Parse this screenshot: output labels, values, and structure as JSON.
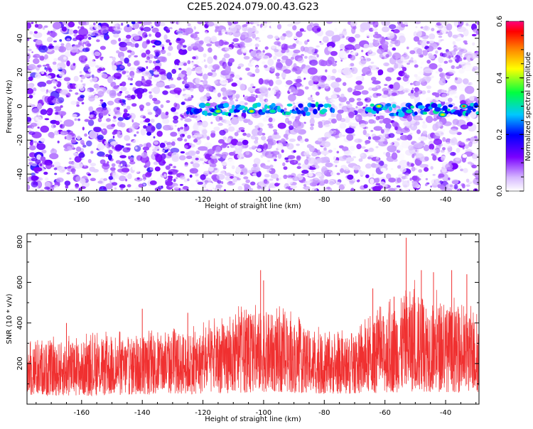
{
  "title": "C2E5.2024.079.00.43.G23",
  "chart_data": [
    {
      "type": "heatmap",
      "xlabel": "Height of straight line (km)",
      "ylabel": "Frequency (Hz)",
      "xlim": [
        -178,
        -29
      ],
      "ylim": [
        -50,
        50
      ],
      "xticks": [
        -160,
        -140,
        -120,
        -100,
        -80,
        -60,
        -40
      ],
      "xtick_labels": [
        "-160",
        "-140",
        "-120",
        "-100",
        "-80",
        "-60",
        "-40"
      ],
      "yticks": [
        -40,
        -20,
        0,
        20,
        40
      ],
      "ytick_labels": [
        "-40",
        "-20",
        "0",
        "20",
        "40"
      ],
      "colorbar": {
        "label": "Normalized spectral amplitude",
        "range": [
          0,
          0.6
        ],
        "ticks": [
          0,
          0.2,
          0.4,
          0.6
        ],
        "tick_labels": [
          "0.0",
          "0.2",
          "0.4",
          "0.6"
        ]
      },
      "band": {
        "center_hz": -2,
        "segments": [
          {
            "x_start": -125,
            "x_end": -77
          },
          {
            "x_start": -66,
            "x_end": -29
          }
        ],
        "peaks": [
          {
            "x": -115,
            "y": -3,
            "amp": 0.4
          },
          {
            "x": -104,
            "y": -3,
            "amp": 0.45
          },
          {
            "x": -97,
            "y": -3,
            "amp": 0.32
          },
          {
            "x": -62,
            "y": 0,
            "amp": 0.45
          },
          {
            "x": -52,
            "y": -3,
            "amp": 0.32
          },
          {
            "x": -41,
            "y": -5,
            "amp": 0.45
          },
          {
            "x": -34,
            "y": 0,
            "amp": 0.58
          }
        ]
      }
    },
    {
      "type": "line",
      "xlabel": "Height of straight line (km)",
      "ylabel": "SNR (10 * v/v)",
      "xlim": [
        -178,
        -29
      ],
      "ylim": [
        0,
        840
      ],
      "xticks": [
        -160,
        -140,
        -120,
        -100,
        -80,
        -60,
        -40
      ],
      "xtick_labels": [
        "-160",
        "-140",
        "-120",
        "-100",
        "-80",
        "-60",
        "-40"
      ],
      "yticks": [
        200,
        400,
        600,
        800
      ],
      "ytick_labels": [
        "200",
        "400",
        "600",
        "800"
      ],
      "series_color": "#f03030",
      "envelope": [
        {
          "x": -178,
          "lo": 40,
          "hi": 300
        },
        {
          "x": -160,
          "lo": 40,
          "hi": 310
        },
        {
          "x": -140,
          "lo": 45,
          "hi": 330
        },
        {
          "x": -120,
          "lo": 50,
          "hi": 360
        },
        {
          "x": -110,
          "lo": 55,
          "hi": 420
        },
        {
          "x": -100,
          "lo": 60,
          "hi": 460
        },
        {
          "x": -90,
          "lo": 55,
          "hi": 400
        },
        {
          "x": -80,
          "lo": 50,
          "hi": 330
        },
        {
          "x": -70,
          "lo": 50,
          "hi": 330
        },
        {
          "x": -60,
          "lo": 55,
          "hi": 450
        },
        {
          "x": -52,
          "lo": 60,
          "hi": 560
        },
        {
          "x": -40,
          "lo": 60,
          "hi": 480
        },
        {
          "x": -29,
          "lo": 55,
          "hi": 420
        }
      ],
      "spikes": [
        {
          "x": -165,
          "y": 400
        },
        {
          "x": -140,
          "y": 470
        },
        {
          "x": -125,
          "y": 450
        },
        {
          "x": -101,
          "y": 660
        },
        {
          "x": -100,
          "y": 610
        },
        {
          "x": -64,
          "y": 570
        },
        {
          "x": -57,
          "y": 530
        },
        {
          "x": -53,
          "y": 820
        },
        {
          "x": -48,
          "y": 660
        },
        {
          "x": -44,
          "y": 650
        },
        {
          "x": -38,
          "y": 660
        },
        {
          "x": -33,
          "y": 640
        }
      ]
    }
  ]
}
